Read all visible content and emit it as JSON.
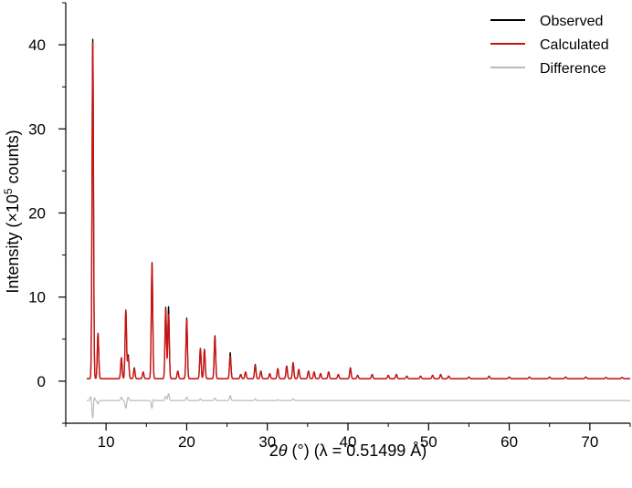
{
  "chart_data": {
    "type": "line",
    "xlabel": {
      "prefix": "2",
      "italic": "θ",
      "suffix": " (°) (λ = 0.51499 Å)"
    },
    "ylabel": {
      "main": "Intensity (×10",
      "sup": "5",
      "tail": " counts)"
    },
    "xlim": [
      5,
      75
    ],
    "ylim": [
      -5,
      45
    ],
    "x_ticks": [
      10,
      20,
      30,
      40,
      50,
      60,
      70
    ],
    "y_ticks": [
      0,
      10,
      20,
      30,
      40
    ],
    "grid": false,
    "legend_position": "top-right",
    "series": [
      {
        "name": "Observed",
        "color": "#000000",
        "baseline": 0.3,
        "peaks": [
          [
            8.35,
            40.6
          ],
          [
            9.0,
            5.4
          ],
          [
            11.9,
            2.2
          ],
          [
            12.45,
            8.2
          ],
          [
            12.75,
            2.8
          ],
          [
            13.5,
            1.3
          ],
          [
            14.6,
            0.8
          ],
          [
            15.7,
            13.8
          ],
          [
            17.4,
            8.5
          ],
          [
            17.75,
            8.6
          ],
          [
            18.9,
            0.9
          ],
          [
            20.0,
            7.2
          ],
          [
            21.7,
            3.6
          ],
          [
            22.2,
            3.5
          ],
          [
            23.5,
            5.1
          ],
          [
            25.4,
            3.1
          ],
          [
            26.7,
            0.5
          ],
          [
            27.3,
            0.8
          ],
          [
            28.5,
            1.7
          ],
          [
            29.2,
            0.9
          ],
          [
            30.3,
            0.6
          ],
          [
            31.3,
            1.2
          ],
          [
            32.4,
            1.5
          ],
          [
            33.2,
            1.9
          ],
          [
            33.9,
            1.1
          ],
          [
            35.1,
            0.9
          ],
          [
            35.8,
            0.8
          ],
          [
            36.6,
            0.6
          ],
          [
            37.6,
            0.8
          ],
          [
            38.8,
            0.5
          ],
          [
            40.3,
            1.3
          ],
          [
            41.2,
            0.4
          ],
          [
            43.0,
            0.5
          ],
          [
            45.0,
            0.4
          ],
          [
            46.0,
            0.5
          ],
          [
            47.3,
            0.3
          ],
          [
            49.0,
            0.3
          ],
          [
            50.5,
            0.4
          ],
          [
            51.5,
            0.5
          ],
          [
            52.5,
            0.3
          ],
          [
            55.0,
            0.2
          ],
          [
            57.5,
            0.3
          ],
          [
            60.0,
            0.2
          ],
          [
            62.5,
            0.2
          ],
          [
            65.0,
            0.2
          ],
          [
            67.0,
            0.2
          ],
          [
            69.5,
            0.2
          ],
          [
            72.0,
            0.15
          ],
          [
            74.0,
            0.15
          ]
        ]
      },
      {
        "name": "Calculated",
        "color": "#cc1111",
        "baseline": 0.3,
        "peaks": [
          [
            8.35,
            40.2
          ],
          [
            9.0,
            5.3
          ],
          [
            11.9,
            2.5
          ],
          [
            12.45,
            8.1
          ],
          [
            12.75,
            2.6
          ],
          [
            13.5,
            1.2
          ],
          [
            14.6,
            0.8
          ],
          [
            15.7,
            13.6
          ],
          [
            17.4,
            8.3
          ],
          [
            17.75,
            7.7
          ],
          [
            18.9,
            0.9
          ],
          [
            20.0,
            7.0
          ],
          [
            21.7,
            3.6
          ],
          [
            22.2,
            3.4
          ],
          [
            23.5,
            4.9
          ],
          [
            25.4,
            2.7
          ],
          [
            26.7,
            0.5
          ],
          [
            27.3,
            0.8
          ],
          [
            28.5,
            1.6
          ],
          [
            29.2,
            0.9
          ],
          [
            30.3,
            0.6
          ],
          [
            31.3,
            1.2
          ],
          [
            32.4,
            1.5
          ],
          [
            33.2,
            1.8
          ],
          [
            33.9,
            1.1
          ],
          [
            35.1,
            0.9
          ],
          [
            35.8,
            0.8
          ],
          [
            36.6,
            0.6
          ],
          [
            37.6,
            0.8
          ],
          [
            38.8,
            0.5
          ],
          [
            40.3,
            1.2
          ],
          [
            41.2,
            0.4
          ],
          [
            43.0,
            0.5
          ],
          [
            45.0,
            0.4
          ],
          [
            46.0,
            0.5
          ],
          [
            47.3,
            0.3
          ],
          [
            49.0,
            0.3
          ],
          [
            50.5,
            0.4
          ],
          [
            51.5,
            0.5
          ],
          [
            52.5,
            0.3
          ],
          [
            55.0,
            0.2
          ],
          [
            57.5,
            0.3
          ],
          [
            60.0,
            0.2
          ],
          [
            62.5,
            0.2
          ],
          [
            65.0,
            0.2
          ],
          [
            67.0,
            0.2
          ],
          [
            69.5,
            0.2
          ],
          [
            72.0,
            0.15
          ],
          [
            74.0,
            0.15
          ]
        ]
      },
      {
        "name": "Difference",
        "color": "#bbbbbb",
        "baseline": -2.3,
        "spikes": [
          [
            8.1,
            0.5
          ],
          [
            8.35,
            -2.2
          ],
          [
            8.5,
            0.6
          ],
          [
            9.0,
            -0.4
          ],
          [
            11.9,
            0.4
          ],
          [
            12.45,
            -0.9
          ],
          [
            12.75,
            0.4
          ],
          [
            15.7,
            -1.1
          ],
          [
            15.8,
            0.4
          ],
          [
            17.4,
            0.5
          ],
          [
            17.75,
            0.8
          ],
          [
            20.0,
            0.4
          ],
          [
            21.7,
            0.2
          ],
          [
            23.5,
            0.3
          ],
          [
            25.4,
            0.6
          ],
          [
            28.5,
            0.2
          ],
          [
            31.3,
            0.1
          ],
          [
            33.2,
            0.2
          ]
        ]
      }
    ]
  }
}
